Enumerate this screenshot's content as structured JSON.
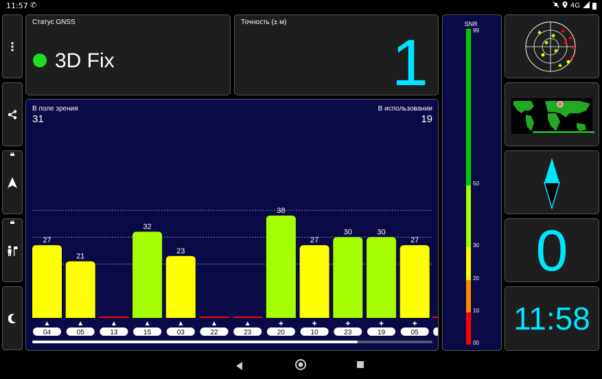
{
  "status_bar": {
    "time": "11:57",
    "network": "4G"
  },
  "gnss_status": {
    "label": "Статус GNSS",
    "value": "3D Fix",
    "dot_color": "#22dd22"
  },
  "accuracy": {
    "label": "Точность (± м)",
    "value": "1"
  },
  "sky": {
    "in_view_label": "В поле зрения",
    "in_view_value": "31",
    "in_use_label": "В использовании",
    "in_use_value": "19"
  },
  "chart_data": {
    "type": "bar",
    "categories": [
      "04",
      "05",
      "13",
      "15",
      "03",
      "22",
      "23",
      "20",
      "10",
      "23",
      "19",
      "05"
    ],
    "values": [
      27,
      21,
      0,
      32,
      23,
      0,
      0,
      38,
      27,
      30,
      30,
      27
    ],
    "markers": [
      "triangle",
      "triangle",
      "triangle",
      "triangle",
      "triangle",
      "triangle",
      "triangle",
      "cross",
      "cross",
      "cross",
      "cross",
      "cross"
    ],
    "value_labels": [
      "27",
      "21",
      "",
      "32",
      "23",
      "",
      "",
      "38",
      "27",
      "30",
      "30",
      "27"
    ],
    "ylim": [
      0,
      50
    ],
    "gridlines": [
      20,
      30,
      40
    ],
    "colors": {
      "yellow": "#ffff00",
      "yellow_green": "#a6ff00",
      "red": "#ff0000",
      "background": "#0a0a46"
    }
  },
  "snr_scale": {
    "title": "SNR",
    "ticks": [
      "99",
      "50",
      "30",
      "20",
      "10",
      "00"
    ],
    "colors": {
      "green": "#00cc00",
      "yellow_green": "#a6ff00",
      "yellow": "#ffff00",
      "orange": "#ff8800",
      "red": "#ff0000"
    }
  },
  "right_panels": {
    "speed": "0",
    "clock": "11:58"
  },
  "icons": {
    "menu": "more-vert-icon",
    "share": "share-icon",
    "navigation": "navigation-arrow-icon",
    "person": "person-flag-icon",
    "night": "moon-icon",
    "compass": "compass-needle-icon",
    "skyplot": "skyplot-icon",
    "worldmap": "world-map-icon"
  }
}
